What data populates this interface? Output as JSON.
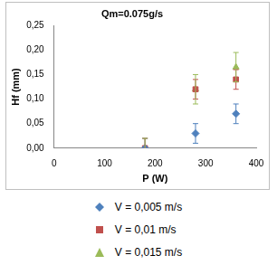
{
  "chart_data": {
    "type": "scatter",
    "title": "Qm=0.075g/s",
    "x_label": "P (W)",
    "y_label": "Hf (mm)",
    "x": [
      180,
      280,
      360
    ],
    "xlim": [
      0,
      400
    ],
    "xticks": [
      0,
      100,
      200,
      300,
      400
    ],
    "ylim": [
      0,
      0.25
    ],
    "yticks": [
      {
        "value": 0,
        "label": "0,00"
      },
      {
        "value": 0.05,
        "label": "0,05"
      },
      {
        "value": 0.1,
        "label": "0,10"
      },
      {
        "value": 0.15,
        "label": "0,15"
      },
      {
        "value": 0.2,
        "label": "0,20"
      },
      {
        "value": 0.25,
        "label": "0,25"
      }
    ],
    "grid": false,
    "legend": "bottom",
    "series": [
      {
        "name": "V = 0,005 m/s",
        "color": "#4f81bd",
        "marker": "diamond",
        "values": [
          0,
          0.03,
          0.07
        ],
        "errors": [
          0.02,
          0.02,
          0.02
        ]
      },
      {
        "name": "V = 0,01 m/s",
        "color": "#c0504d",
        "marker": "square",
        "values": [
          0,
          0.12,
          0.14
        ],
        "errors": [
          0.02,
          0.02,
          0.02
        ]
      },
      {
        "name": "V = 0,015 m/s",
        "color": "#9bbb59",
        "marker": "triangle",
        "values": [
          0,
          0.12,
          0.165
        ],
        "errors": [
          0.02,
          0.03,
          0.03
        ]
      }
    ]
  }
}
